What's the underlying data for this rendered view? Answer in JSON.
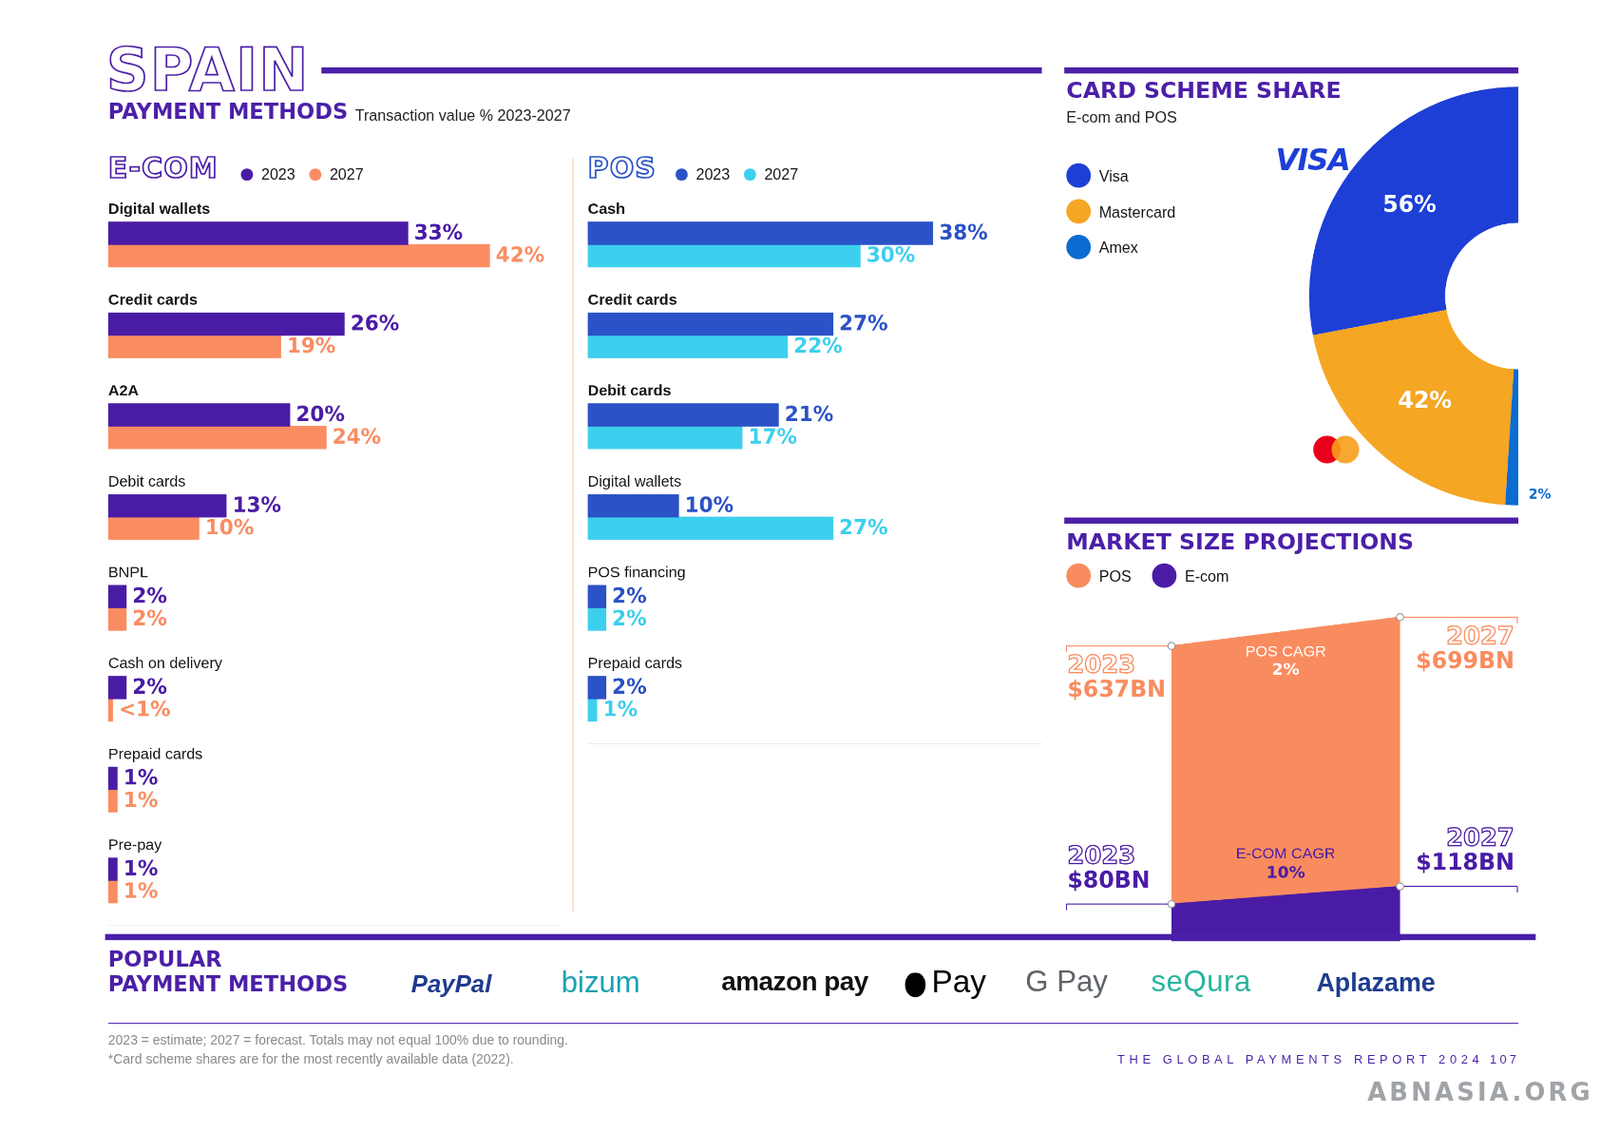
{
  "header": {
    "title": "SPAIN",
    "subtitle": "PAYMENT METHODS",
    "note": "Transaction value % 2023-2027"
  },
  "chart_data": [
    {
      "type": "bar",
      "title": "E-COM",
      "orientation": "horizontal",
      "categories": [
        "Digital wallets",
        "Credit cards",
        "A2A",
        "Debit cards",
        "BNPL",
        "Cash on delivery",
        "Prepaid cards",
        "Pre-pay"
      ],
      "series": [
        {
          "name": "2023",
          "color": "#4a1ca6",
          "values": [
            33,
            26,
            20,
            13,
            2,
            2,
            1,
            1
          ],
          "value_labels": [
            "33%",
            "26%",
            "20%",
            "13%",
            "2%",
            "2%",
            "1%",
            "1%"
          ]
        },
        {
          "name": "2027",
          "color": "#fa8c62",
          "values": [
            42,
            19,
            24,
            10,
            2,
            0.5,
            1,
            1
          ],
          "value_labels": [
            "42%",
            "19%",
            "24%",
            "10%",
            "2%",
            "<1%",
            "1%",
            "1%"
          ]
        }
      ],
      "xlim": [
        0,
        50
      ],
      "grid": false,
      "tick_labels": false,
      "data_labels": true,
      "legend": "top"
    },
    {
      "type": "bar",
      "title": "POS",
      "orientation": "horizontal",
      "categories": [
        "Cash",
        "Credit cards",
        "Debit cards",
        "Digital wallets",
        "POS financing",
        "Prepaid cards"
      ],
      "series": [
        {
          "name": "2023",
          "color": "#2b52c6",
          "values": [
            38,
            27,
            21,
            10,
            2,
            2
          ],
          "value_labels": [
            "38%",
            "27%",
            "21%",
            "10%",
            "2%",
            "2%"
          ]
        },
        {
          "name": "2027",
          "color": "#3dcfee",
          "values": [
            30,
            22,
            17,
            27,
            2,
            1
          ],
          "value_labels": [
            "30%",
            "22%",
            "17%",
            "27%",
            "2%",
            "1%"
          ]
        }
      ],
      "xlim": [
        0,
        50
      ],
      "grid": false,
      "tick_labels": false,
      "data_labels": true,
      "legend": "top"
    },
    {
      "type": "doughnut",
      "title": "CARD SCHEME SHARE",
      "subtitle": "E-com and POS",
      "categories": [
        "Visa",
        "Mastercard",
        "Amex"
      ],
      "values": [
        56,
        42,
        2
      ],
      "value_labels": [
        "56%",
        "42%",
        "2%"
      ],
      "colors": [
        "#1d3fd6",
        "#f5a623",
        "#0a6cd0"
      ],
      "annotations": [
        "VISA"
      ],
      "data_labels": true,
      "legend": "left"
    },
    {
      "type": "line",
      "title": "MARKET SIZE PROJECTIONS",
      "x": [
        2023,
        2027
      ],
      "series": [
        {
          "name": "POS",
          "color": "#f98c5f",
          "values": [
            637,
            699
          ],
          "value_labels": [
            "$637BN",
            "$699BN"
          ],
          "cagr_title": "POS CAGR",
          "cagr": 2,
          "cagr_label": "2%"
        },
        {
          "name": "E-com",
          "color": "#4a1ca6",
          "values": [
            80,
            118
          ],
          "value_labels": [
            "$80BN",
            "$118BN"
          ],
          "cagr_title": "E-COM CAGR",
          "cagr": 10,
          "cagr_label": "10%"
        }
      ],
      "xlim": [
        2023,
        2027
      ],
      "ylim": [
        0,
        720
      ],
      "grid": false,
      "tick_labels": false,
      "data_labels": true,
      "legend": "top"
    }
  ],
  "popular_payment_methods": {
    "title_lines": [
      "POPULAR",
      "PAYMENT METHODS"
    ],
    "items": [
      {
        "text": "PayPal",
        "color": "#1f3b8f"
      },
      {
        "text": "bizum",
        "color": "#1ba1b3"
      },
      {
        "text": "amazon pay",
        "color": "#111111"
      },
      {
        "text": "Pay",
        "color": "#000000"
      },
      {
        "text": "G Pay",
        "color": "#5f6368"
      },
      {
        "text": "seQura",
        "color": "#2ab39c"
      },
      {
        "text": "Aplazame",
        "color": "#1d3d8f"
      }
    ]
  },
  "footnotes": [
    "2023 = estimate; 2027 = forecast. Totals may not equal 100% due to rounding.",
    "*Card scheme shares are for the most recently available data (2022)."
  ],
  "footer": {
    "text": "THE GLOBAL PAYMENTS REPORT 2024",
    "page": "107"
  },
  "watermark": "ABNASIA.ORG"
}
